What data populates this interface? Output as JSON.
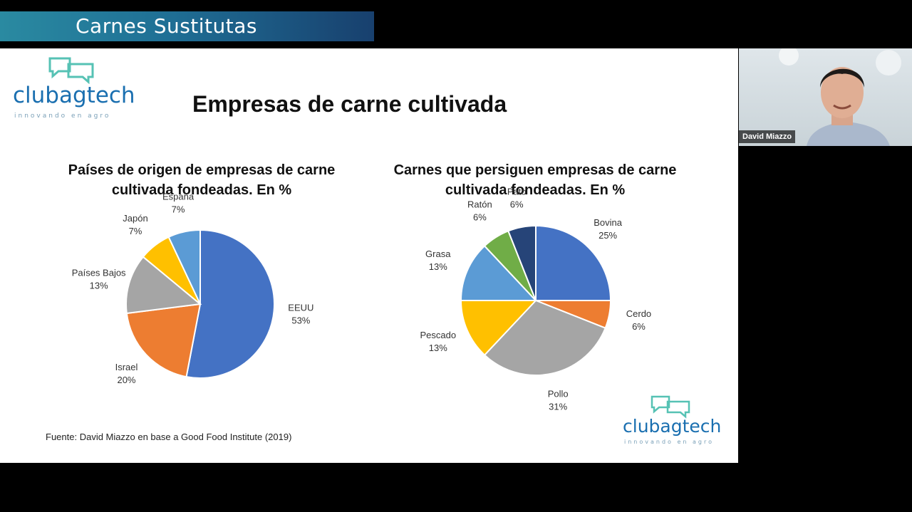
{
  "banner": {
    "title": "Carnes Sustitutas"
  },
  "logo": {
    "word_a": "club",
    "word_b": "agtech",
    "tagline": "innovando en agro"
  },
  "slide": {
    "title": "Empresas de carne cultivada"
  },
  "source": "Fuente: David Miazzo en base a Good Food Institute (2019)",
  "participant": {
    "name": "David Miazzo"
  },
  "icons": [
    "chat-bubble-logo-icon",
    "person-icon"
  ],
  "chart_data": [
    {
      "type": "pie",
      "title": "Países de origen de empresas de carne cultivada fondeadas. En %",
      "title_lines": [
        "Países de origen de empresas de carne",
        "cultivada fondeadas. En %"
      ],
      "start_angle_deg": 0,
      "slices": [
        {
          "label": "EEUU",
          "value": 53,
          "display": "53%",
          "color": "#4472c4"
        },
        {
          "label": "Israel",
          "value": 20,
          "display": "20%",
          "color": "#ed7d31"
        },
        {
          "label": "Países Bajos",
          "value": 13,
          "display": "13%",
          "color": "#a5a5a5"
        },
        {
          "label": "Japón",
          "value": 7,
          "display": "7%",
          "color": "#ffc000"
        },
        {
          "label": "España",
          "value": 7,
          "display": "7%",
          "color": "#5b9bd5"
        }
      ]
    },
    {
      "type": "pie",
      "title": "Carnes que persiguen empresas de carne cultivada fondeadas. En %",
      "title_lines": [
        "Carnes que persiguen empresas de carne",
        "cultivada fondeadas. En %"
      ],
      "start_angle_deg": 0,
      "slices": [
        {
          "label": "Bovina",
          "value": 25,
          "display": "25%",
          "color": "#4472c4"
        },
        {
          "label": "Cerdo",
          "value": 6,
          "display": "6%",
          "color": "#ed7d31"
        },
        {
          "label": "Pollo",
          "value": 31,
          "display": "31%",
          "color": "#a5a5a5"
        },
        {
          "label": "Pescado",
          "value": 13,
          "display": "13%",
          "color": "#ffc000"
        },
        {
          "label": "Grasa",
          "value": 13,
          "display": "13%",
          "color": "#5b9bd5"
        },
        {
          "label": "Ratón",
          "value": 6,
          "display": "6%",
          "color": "#70ad47"
        },
        {
          "label": "Pato",
          "value": 6,
          "display": "6%",
          "color": "#264478"
        }
      ]
    }
  ]
}
